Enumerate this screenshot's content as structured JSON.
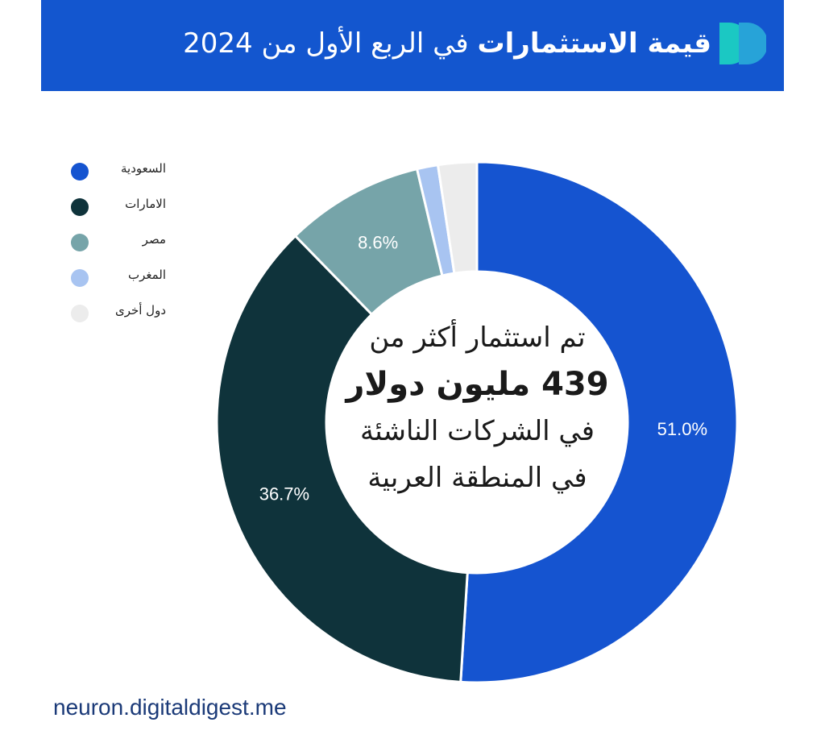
{
  "header": {
    "title_bold": "قيمة الاستثمارات",
    "title_rest": "في الربع الأول من 2024"
  },
  "center": {
    "line1": "تم استثمار أكثر من",
    "line2": "439 مليون دولار",
    "line3": "في الشركات الناشئة",
    "line4": "في المنطقة العربية"
  },
  "footer": {
    "url": "neuron.digitaldigest.me"
  },
  "colors": {
    "header_bg": "#1356cf",
    "logo_teal": "#1bc8c3",
    "logo_blue": "#27a3d8"
  },
  "chart_data": {
    "type": "pie",
    "variant": "donut",
    "legend_position": "top-left",
    "categories": [
      "السعودية",
      "الامارات",
      "مصر",
      "المغرب",
      "دول أخرى"
    ],
    "values": [
      51.0,
      36.7,
      8.6,
      1.3,
      2.4
    ],
    "data_labels": [
      "51.0%",
      "36.7%",
      "8.6%",
      "",
      ""
    ],
    "colors": [
      "#1554d0",
      "#0f333b",
      "#76a4a9",
      "#a8c4f1",
      "#ececec"
    ]
  }
}
